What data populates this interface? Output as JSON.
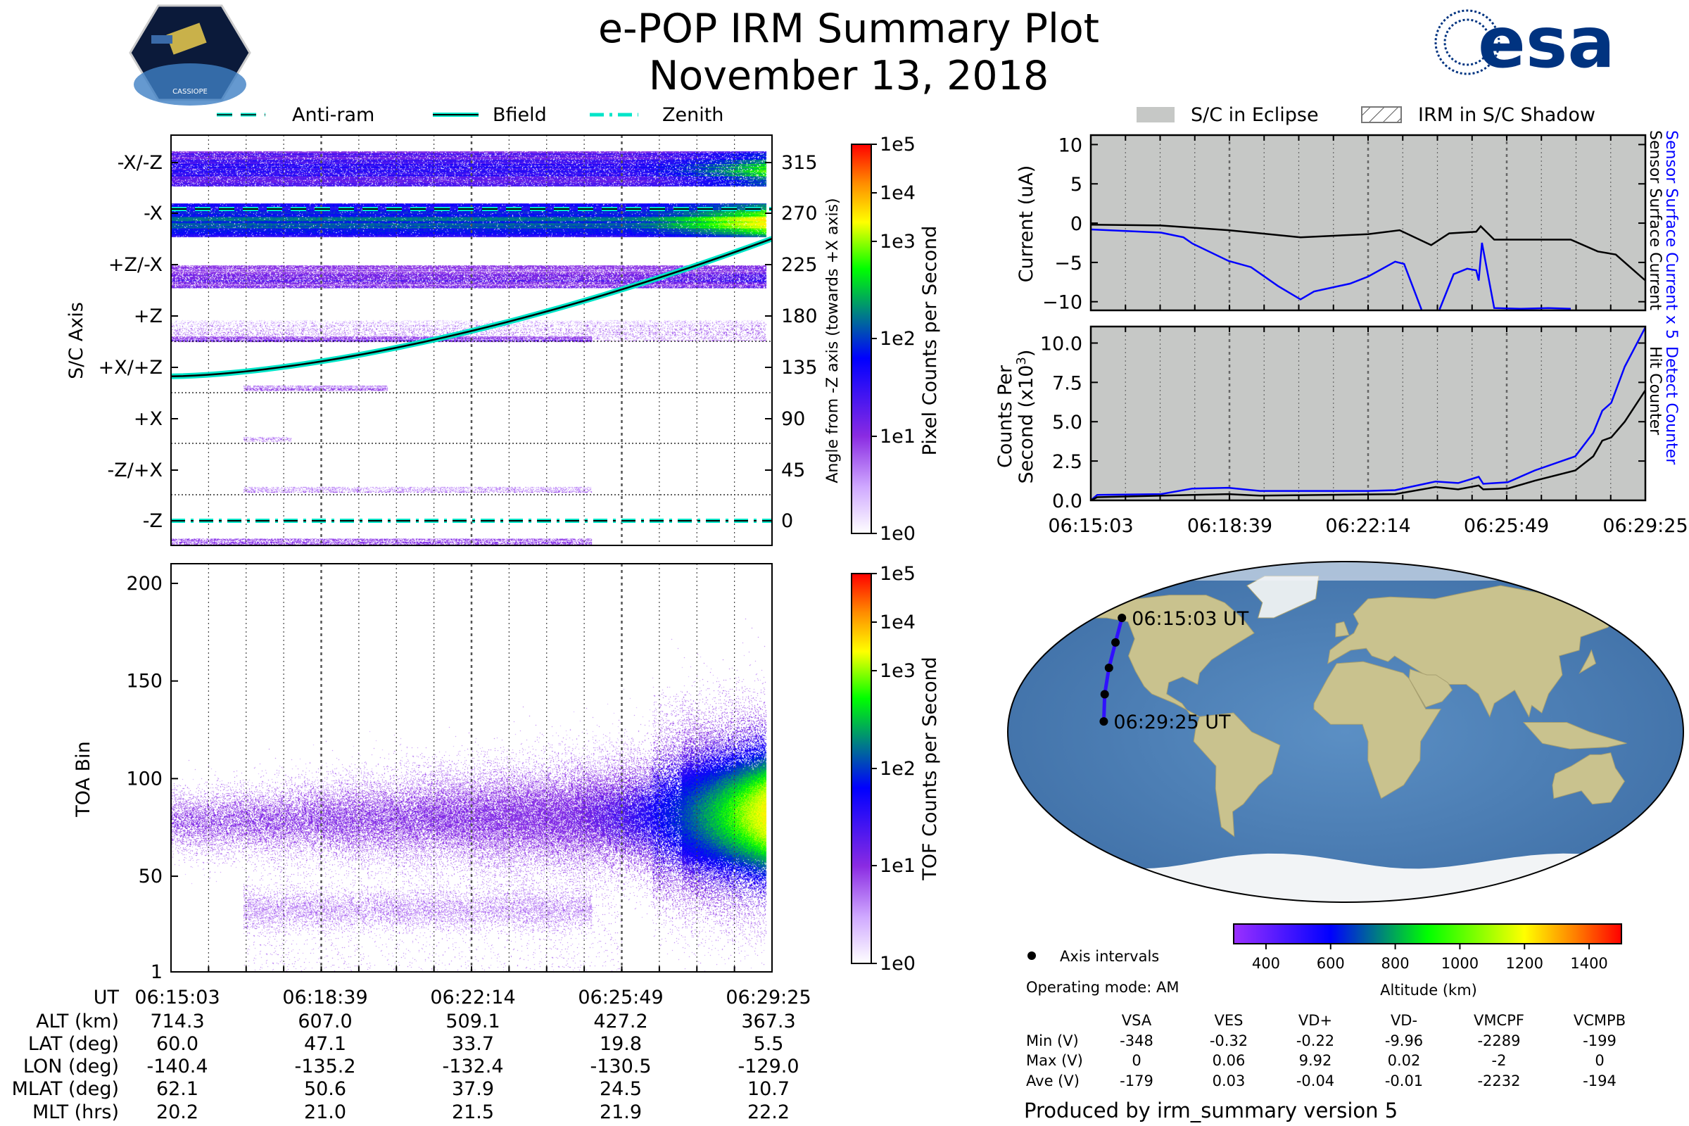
{
  "header": {
    "title": "e-POP IRM Summary Plot",
    "date": "November 13, 2018",
    "left_logo_text": "CASSIOPE",
    "right_logo_text": "esa"
  },
  "colors": {
    "eclipse_gray": "#c6c8c6",
    "series_blue": "#0000ff",
    "series_black": "#000000",
    "bfield_cyan": "#00e5c8",
    "esa_blue": "#003380"
  },
  "chart_data": [
    {
      "id": "pixel-spectrogram",
      "type": "heatmap",
      "legend": [
        {
          "label": "Anti-ram",
          "style": "dashed"
        },
        {
          "label": "Bfield",
          "style": "solid"
        },
        {
          "label": "Zenith",
          "style": "dashdot"
        }
      ],
      "ylabel": "S/C Axis",
      "y_categories": [
        "-X/-Z",
        "-X",
        "+Z/-X",
        "+Z",
        "+X/+Z",
        "+X",
        "-Z/+X",
        "-Z"
      ],
      "y2label": "Angle from -Z axis (towards +X axis)",
      "y2_ticks": [
        "315",
        "270",
        "225",
        "180",
        "135",
        "90",
        "45",
        "0"
      ],
      "colorbar": {
        "label": "Pixel Counts per Second",
        "ticks": [
          "1e5",
          "1e4",
          "1e3",
          "1e2",
          "1e1",
          "1e0"
        ]
      },
      "antiram_angle_deg": 273,
      "zenith_angle_deg": 0,
      "bfield_angle_deg": {
        "start": 127,
        "end": 248
      }
    },
    {
      "id": "tof-spectrogram",
      "type": "heatmap",
      "ylabel": "TOA Bin",
      "y_ticks": [
        "200",
        "150",
        "100",
        "50",
        "1"
      ],
      "ylim": [
        1,
        210
      ],
      "colorbar": {
        "label": "TOF Counts per Second",
        "ticks": [
          "1e5",
          "1e4",
          "1e3",
          "1e2",
          "1e1",
          "1e0"
        ]
      }
    },
    {
      "id": "current-plot",
      "type": "line",
      "ylabel": "Current (uA)",
      "ylim": [
        -11,
        11
      ],
      "y_ticks": [
        "10",
        "5",
        "0",
        "−5",
        "−10"
      ],
      "legend": [
        {
          "label": "S/C in Eclipse",
          "style": "gray-fill"
        },
        {
          "label": "IRM in S/C Shadow",
          "style": "hatch"
        }
      ],
      "x_unit": "seconds since 06:15:03",
      "series": [
        {
          "name": "Sensor Surface Current",
          "color": "#000000",
          "points": [
            [
              0,
              -0.2
            ],
            [
              109,
              -0.3
            ],
            [
              214,
              -0.9
            ],
            [
              326,
              -1.8
            ],
            [
              431,
              -1.4
            ],
            [
              480,
              -0.9
            ],
            [
              529,
              -2.8
            ],
            [
              557,
              -1.3
            ],
            [
              599,
              -1.1
            ],
            [
              606,
              -0.4
            ],
            [
              627,
              -2.1
            ],
            [
              746,
              -2.1
            ],
            [
              788,
              -3.6
            ],
            [
              816,
              -4.0
            ],
            [
              862,
              -7.3
            ]
          ]
        },
        {
          "name": "Sensor Surface Current x 5",
          "color": "#0000ff",
          "segments": [
            [
              [
                0,
                -0.8
              ],
              [
                109,
                -1.2
              ],
              [
                144,
                -1.8
              ],
              [
                158,
                -2.6
              ],
              [
                214,
                -4.8
              ],
              [
                249,
                -5.6
              ],
              [
                291,
                -8.0
              ],
              [
                326,
                -9.7
              ],
              [
                347,
                -8.7
              ],
              [
                403,
                -7.7
              ],
              [
                431,
                -6.8
              ],
              [
                473,
                -4.9
              ],
              [
                487,
                -5.2
              ],
              [
                514,
                -11
              ]
            ],
            [
              [
                542,
                -11
              ],
              [
                564,
                -6.5
              ],
              [
                585,
                -5.8
              ],
              [
                599,
                -6.0
              ],
              [
                603,
                -7.3
              ],
              [
                608,
                -2.5
              ],
              [
                627,
                -10.8
              ],
              [
                669,
                -10.9
              ],
              [
                711,
                -10.8
              ],
              [
                746,
                -10.9
              ]
            ]
          ]
        }
      ]
    },
    {
      "id": "counts-plot",
      "type": "line",
      "ylabel_line1": "Counts Per",
      "ylabel_line2": "Second (x10",
      "ylabel_sup": "3",
      "ylabel_end": ")",
      "ylim": [
        0,
        11
      ],
      "y_ticks": [
        "10.0",
        "7.5",
        "5.0",
        "2.5",
        "0.0"
      ],
      "x_ticks": [
        "06:15:03",
        "06:18:39",
        "06:22:14",
        "06:25:49",
        "06:29:25"
      ],
      "series": [
        {
          "name": "Detect Counter",
          "color": "#0000ff",
          "points": [
            [
              0,
              0
            ],
            [
              10,
              0.35
            ],
            [
              109,
              0.4
            ],
            [
              158,
              0.75
            ],
            [
              214,
              0.8
            ],
            [
              263,
              0.6
            ],
            [
              431,
              0.6
            ],
            [
              473,
              0.65
            ],
            [
              536,
              1.2
            ],
            [
              571,
              1.1
            ],
            [
              603,
              1.5
            ],
            [
              610,
              1.05
            ],
            [
              648,
              1.15
            ],
            [
              690,
              1.9
            ],
            [
              753,
              2.8
            ],
            [
              781,
              4.3
            ],
            [
              795,
              5.7
            ],
            [
              809,
              6.2
            ],
            [
              830,
              8.5
            ],
            [
              862,
              11
            ]
          ]
        },
        {
          "name": "Hit Counter",
          "color": "#000000",
          "points": [
            [
              0,
              0
            ],
            [
              10,
              0.2
            ],
            [
              158,
              0.35
            ],
            [
              214,
              0.4
            ],
            [
              263,
              0.3
            ],
            [
              473,
              0.4
            ],
            [
              536,
              0.85
            ],
            [
              571,
              0.7
            ],
            [
              603,
              0.95
            ],
            [
              610,
              0.7
            ],
            [
              648,
              0.75
            ],
            [
              690,
              1.25
            ],
            [
              753,
              1.9
            ],
            [
              781,
              2.8
            ],
            [
              795,
              3.8
            ],
            [
              809,
              4.0
            ],
            [
              830,
              5.0
            ],
            [
              862,
              7.0
            ]
          ]
        }
      ]
    },
    {
      "id": "ground-track-map",
      "type": "scatter",
      "track": [
        {
          "time": "06:15:03",
          "lat": 60.0,
          "lon": -140.4,
          "label": "06:15:03 UT"
        },
        {
          "time": "06:18:39",
          "lat": 47.1,
          "lon": -135.2
        },
        {
          "time": "06:22:14",
          "lat": 33.7,
          "lon": -132.4
        },
        {
          "time": "06:25:49",
          "lat": 19.8,
          "lon": -130.5
        },
        {
          "time": "06:29:25",
          "lat": 5.5,
          "lon": -129.0,
          "label": "06:29:25 UT"
        }
      ],
      "colorbar": {
        "label": "Altitude (km)",
        "ticks": [
          "400",
          "600",
          "800",
          "1000",
          "1200",
          "1400"
        ],
        "range": [
          300,
          1500
        ]
      },
      "legend": "Axis intervals"
    }
  ],
  "ephemeris": {
    "row_labels": [
      "UT",
      "ALT (km)",
      "LAT (deg)",
      "LON (deg)",
      "MLAT (deg)",
      "MLT (hrs)"
    ],
    "columns": [
      [
        "06:15:03",
        "714.3",
        "60.0",
        "-140.4",
        "62.1",
        "20.2"
      ],
      [
        "06:18:39",
        "607.0",
        "47.1",
        "-135.2",
        "50.6",
        "21.0"
      ],
      [
        "06:22:14",
        "509.1",
        "33.7",
        "-132.4",
        "37.9",
        "21.5"
      ],
      [
        "06:25:49",
        "427.2",
        "19.8",
        "-130.5",
        "24.5",
        "21.9"
      ],
      [
        "06:29:25",
        "367.3",
        "5.5",
        "-129.0",
        "10.7",
        "22.2"
      ]
    ]
  },
  "side_labels": {
    "sensor_blue": "Sensor Surface Current x 5",
    "sensor_black": "Sensor Surface Current",
    "detect_blue": "Detect Counter",
    "hit_black": "Hit Counter"
  },
  "info": {
    "operating_mode": "Operating mode: AM",
    "produced_by": "Produced by irm_summary version 5"
  },
  "voltages": {
    "headers": [
      "VSA",
      "VES",
      "VD+",
      "VD-",
      "VMCPF",
      "VCMPB"
    ],
    "rows": [
      {
        "label": "Min (V)",
        "values": [
          "-348",
          "-0.32",
          "-0.22",
          "-9.96",
          "-2289",
          "-199"
        ]
      },
      {
        "label": "Max (V)",
        "values": [
          "0",
          "0.06",
          "9.92",
          "0.02",
          "-2",
          "0"
        ]
      },
      {
        "label": "Ave (V)",
        "values": [
          "-179",
          "0.03",
          "-0.04",
          "-0.01",
          "-2232",
          "-194"
        ]
      }
    ]
  }
}
